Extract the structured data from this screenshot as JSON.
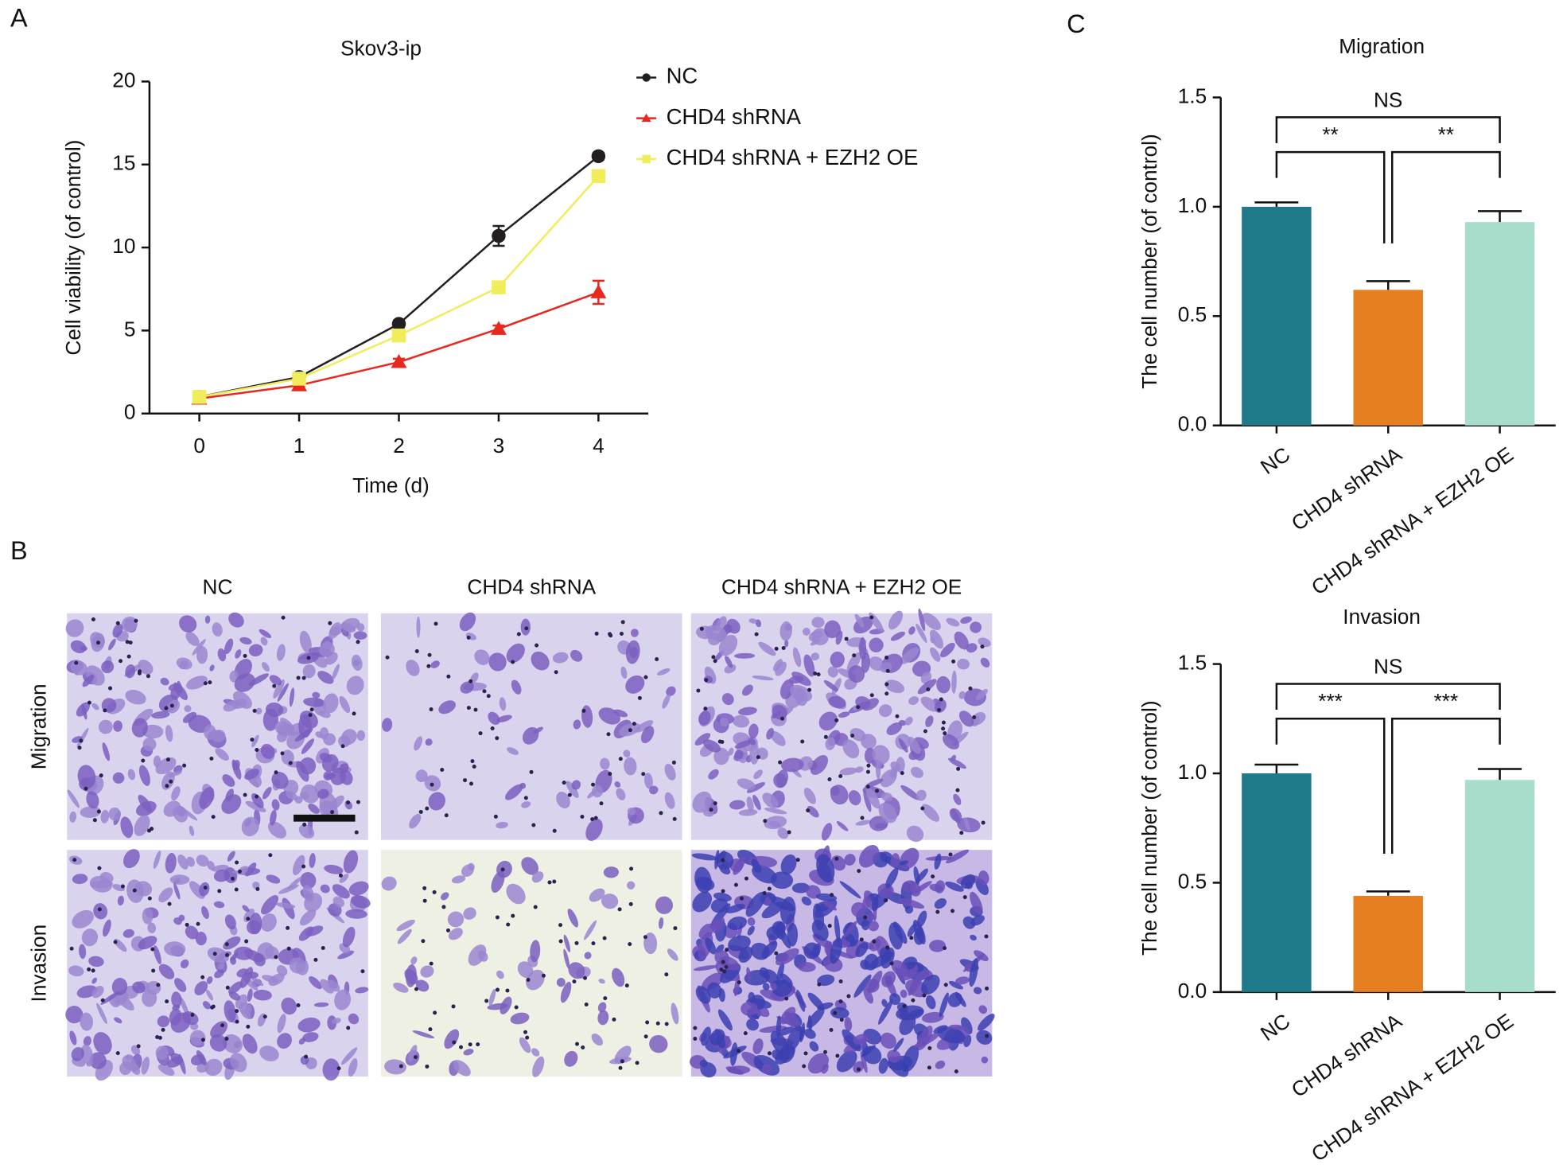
{
  "panel_labels": [
    "A",
    "B",
    "C"
  ],
  "images": {
    "columns": [
      "NC",
      "CHD4 shRNA",
      "CHD4 shRNA + EZH2 OE"
    ],
    "rows": [
      "Migration",
      "Invasion"
    ]
  },
  "chart_data": [
    {
      "type": "line",
      "title": "Skov3-ip",
      "x_label": "Time (d)",
      "y_label": "Cell viability (of control)",
      "x": [
        0,
        1,
        2,
        3,
        4
      ],
      "xlim": [
        -0.5,
        4.5
      ],
      "xticks": [
        0,
        1,
        2,
        3,
        4
      ],
      "ylim": [
        0,
        20
      ],
      "yticks": [
        0,
        5,
        10,
        15,
        20
      ],
      "series": [
        {
          "name": "NC",
          "color": "#231f20",
          "marker": "circle",
          "values": [
            1,
            2.2,
            5.4,
            10.7,
            15.5
          ],
          "errors": [
            0.1,
            0.2,
            0.2,
            0.6,
            0.2
          ]
        },
        {
          "name": "CHD4 shRNA",
          "color": "#e8281e",
          "marker": "triangle",
          "values": [
            0.9,
            1.7,
            3.1,
            5.1,
            7.3
          ],
          "errors": [
            0.1,
            0.1,
            0.2,
            0.2,
            0.7
          ]
        },
        {
          "name": "CHD4 shRNA + EZH2 OE",
          "color": "#f0ec5a",
          "marker": "square",
          "values": [
            1,
            2.1,
            4.7,
            7.6,
            14.3
          ],
          "errors": [
            0.1,
            0.1,
            0.2,
            0.2,
            0.2
          ]
        }
      ]
    },
    {
      "type": "bar",
      "title": "Migration",
      "y_label": "The cell number (of control)",
      "categories": [
        "NC",
        "CHD4 shRNA",
        "CHD4 shRNA + EZH2 OE"
      ],
      "values": [
        1.0,
        0.62,
        0.93
      ],
      "errors": [
        0.02,
        0.04,
        0.05
      ],
      "colors": [
        "#1f7a8c",
        "#e67e22",
        "#a8dccb"
      ],
      "ylim": [
        0,
        1.5
      ],
      "yticks": [
        {
          "value": 0,
          "label": "0.0"
        },
        0.5,
        {
          "value": 1,
          "label": "1.0"
        },
        1.5
      ],
      "comparisons": [
        {
          "label": "NS",
          "groups": [
            "NC",
            "CHD4 shRNA + EZH2 OE"
          ]
        },
        {
          "label": "**",
          "groups": [
            "NC",
            "CHD4 shRNA"
          ]
        },
        {
          "label": "**",
          "groups": [
            "CHD4 shRNA",
            "CHD4 shRNA + EZH2 OE"
          ]
        }
      ]
    },
    {
      "type": "bar",
      "title": "Invasion",
      "y_label": "The cell number (of control)",
      "categories": [
        "NC",
        "CHD4 shRNA",
        "CHD4 shRNA + EZH2 OE"
      ],
      "values": [
        1.0,
        0.44,
        0.97
      ],
      "errors": [
        0.04,
        0.02,
        0.05
      ],
      "colors": [
        "#1f7a8c",
        "#e67e22",
        "#a8dccb"
      ],
      "ylim": [
        0,
        1.5
      ],
      "yticks": [
        {
          "value": 0,
          "label": "0.0"
        },
        0.5,
        {
          "value": 1,
          "label": "1.0"
        },
        1.5
      ],
      "comparisons": [
        {
          "label": "NS",
          "groups": [
            "NC",
            "CHD4 shRNA + EZH2 OE"
          ]
        },
        {
          "label": "***",
          "groups": [
            "NC",
            "CHD4 shRNA"
          ]
        },
        {
          "label": "***",
          "groups": [
            "CHD4 shRNA",
            "CHD4 shRNA + EZH2 OE"
          ]
        }
      ]
    }
  ]
}
